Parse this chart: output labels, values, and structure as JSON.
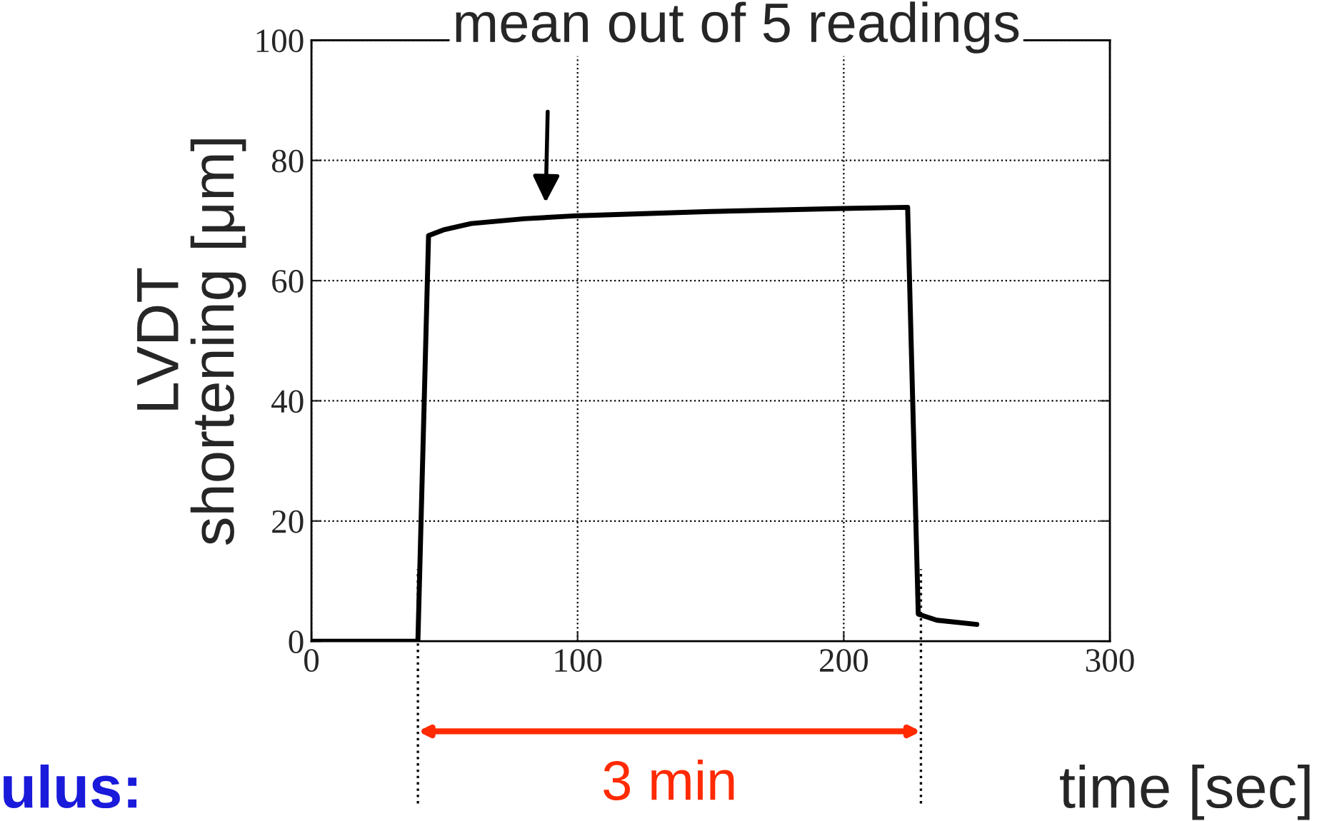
{
  "chart_data": {
    "type": "line",
    "xlabel": "time [sec]",
    "ylabel": "LVDT\nshortening [μm]",
    "x": [
      0,
      40,
      44,
      50,
      60,
      80,
      100,
      150,
      200,
      224,
      228,
      235,
      250
    ],
    "series": [
      {
        "color": "#000000",
        "values": [
          0,
          0,
          67.5,
          68.5,
          69.5,
          70.3,
          70.8,
          71.5,
          72,
          72.2,
          4.5,
          3.5,
          2.8
        ]
      }
    ],
    "xlim": [
      0,
      300
    ],
    "xticks": [
      0,
      100,
      200,
      300
    ],
    "ylim": [
      0,
      100
    ],
    "yticks": [
      0,
      20,
      40,
      60,
      80,
      100
    ],
    "grid": true,
    "line_style": "solid",
    "marker": "none",
    "ref_lines": [
      {
        "axis": "x",
        "value": 40,
        "color": "#000000",
        "line_style": "dotted"
      },
      {
        "axis": "x",
        "value": 229,
        "color": "#000000",
        "line_style": "dotted"
      }
    ],
    "annotations": [
      {
        "text": "mean out of 5 readings",
        "x": 88,
        "y": 71
      },
      "3 min",
      "ulus:"
    ]
  }
}
